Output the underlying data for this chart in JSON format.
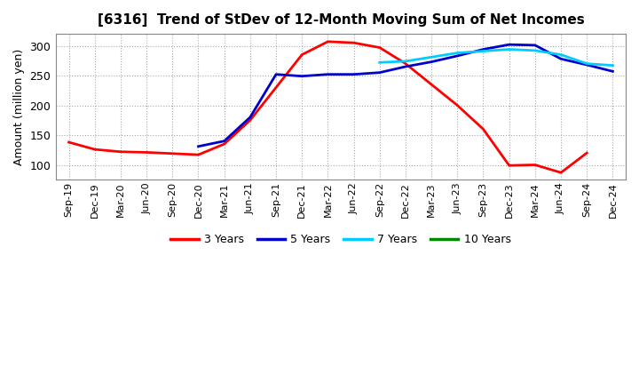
{
  "title": "[6316]  Trend of StDev of 12-Month Moving Sum of Net Incomes",
  "ylabel": "Amount (million yen)",
  "background_color": "#ffffff",
  "grid_color": "#aaaaaa",
  "x_labels": [
    "Sep-19",
    "Dec-19",
    "Mar-20",
    "Jun-20",
    "Sep-20",
    "Dec-20",
    "Mar-21",
    "Jun-21",
    "Sep-21",
    "Dec-21",
    "Mar-22",
    "Jun-22",
    "Sep-22",
    "Dec-22",
    "Mar-23",
    "Jun-23",
    "Sep-23",
    "Dec-23",
    "Mar-24",
    "Jun-24",
    "Sep-24",
    "Dec-24"
  ],
  "ylim": [
    75,
    320
  ],
  "yticks": [
    100,
    150,
    200,
    250,
    300
  ],
  "series": {
    "3yr": {
      "color": "#ff0000",
      "label": "3 Years",
      "values": [
        138,
        126,
        122,
        121,
        119,
        117,
        135,
        175,
        230,
        285,
        307,
        305,
        297,
        270,
        235,
        200,
        160,
        99,
        100,
        87,
        120,
        null
      ]
    },
    "5yr": {
      "color": "#0000cc",
      "label": "5 Years",
      "values": [
        null,
        null,
        null,
        null,
        null,
        131,
        140,
        180,
        252,
        249,
        252,
        252,
        255,
        265,
        273,
        283,
        294,
        302,
        301,
        278,
        268,
        257
      ]
    },
    "7yr": {
      "color": "#00ccff",
      "label": "7 Years",
      "values": [
        null,
        null,
        null,
        null,
        null,
        null,
        null,
        null,
        null,
        null,
        null,
        null,
        272,
        274,
        281,
        288,
        291,
        294,
        292,
        285,
        270,
        267
      ]
    },
    "10yr": {
      "color": "#008800",
      "label": "10 Years",
      "values": [
        null,
        null,
        null,
        null,
        null,
        null,
        null,
        null,
        null,
        null,
        null,
        null,
        null,
        null,
        null,
        null,
        null,
        null,
        null,
        null,
        null,
        null
      ]
    }
  }
}
